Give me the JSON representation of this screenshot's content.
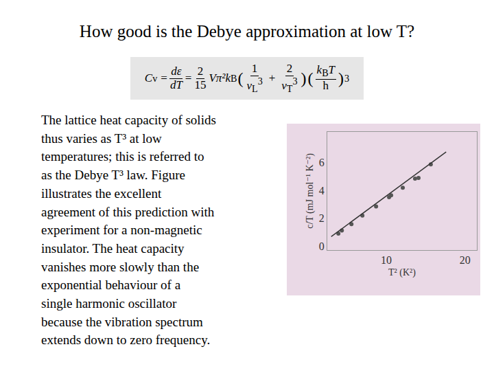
{
  "slide": {
    "title": "How good is the Debye approximation at low T?",
    "formula": {
      "lhs": "C",
      "lhs_sub": "v",
      "equals": "=",
      "derivative": {
        "num": "dε",
        "den": "dT"
      },
      "coefficient": {
        "num": "2",
        "den": "15"
      },
      "factor": "Vπ²k",
      "factor_sub": "B",
      "open": "(",
      "close": ")",
      "terms": [
        {
          "num": "1",
          "den": "v",
          "den_sub": "L",
          "den_pow": "3"
        },
        {
          "op": "+",
          "num": "2",
          "den": "v",
          "den_sub": "T",
          "den_pow": "3"
        }
      ],
      "last": {
        "num": "k",
        "num_sub": "B",
        "num_rest": "T",
        "den": "h",
        "power": "3"
      }
    },
    "body": [
      "The lattice heat capacity of solids",
      "thus varies as T³ at low",
      "temperatures; this is referred to",
      "as the Debye T³ law.  Figure",
      "illustrates the excellent",
      "agreement of this prediction with",
      "experiment for a non-magnetic",
      "insulator. The heat capacity",
      "vanishes more slowly than the",
      "exponential behaviour  of a",
      "single harmonic oscillator",
      "because the vibration spectrum",
      "extends down to zero frequency."
    ]
  },
  "chart_data": {
    "type": "scatter",
    "x_label": "T² (K²)",
    "y_label": "c/T (mJ mol⁻¹ K⁻²)",
    "xlim": [
      2.5,
      21.5
    ],
    "ylim": [
      -0.3,
      8.2
    ],
    "xticks": [
      10,
      20
    ],
    "yticks": [
      0,
      2,
      4,
      6
    ],
    "grid": false,
    "series": [
      {
        "type": "scatter",
        "marker": "circle",
        "color": "#555555",
        "x": [
          3.91,
          4.35,
          5.57,
          6.96,
          8.7,
          10.35,
          10.61,
          12.09,
          13.65,
          14.09,
          15.65
        ],
        "values": [
          0.89,
          1.11,
          1.56,
          2.18,
          2.84,
          3.51,
          3.64,
          4.18,
          4.84,
          4.89,
          5.87
        ]
      },
      {
        "type": "line",
        "line_style": "solid",
        "color": "#333333",
        "x": [
          3.0,
          17.6
        ],
        "values": [
          0.67,
          6.76
        ]
      }
    ]
  }
}
